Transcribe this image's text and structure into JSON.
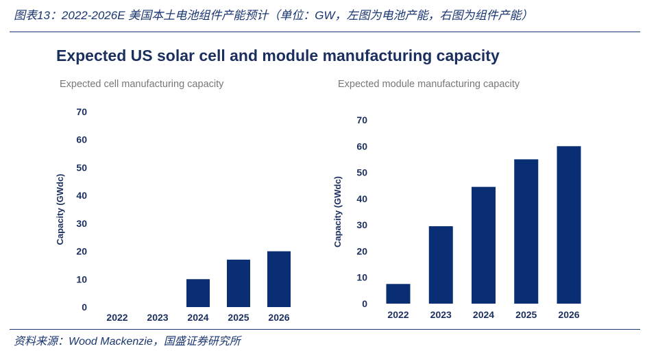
{
  "caption": "图表13：2022-2026E 美国本土电池组件产能预计（单位：GW，左图为电池产能，右图为组件产能）",
  "source": "资料来源：Wood Mackenzie，国盛证券研究所",
  "colors": {
    "bar": "#0a2e73",
    "text": "#1b2f5e",
    "caption": "#1a3570",
    "subtitle": "#777777"
  },
  "title": "Expected US solar cell and module manufacturing capacity",
  "chart_data": [
    {
      "type": "bar",
      "title": "Expected cell manufacturing capacity",
      "ylabel": "Capacity (GWdc)",
      "xlabel": "",
      "categories": [
        "2022",
        "2023",
        "2024",
        "2025",
        "2026"
      ],
      "values": [
        0,
        0,
        10,
        17,
        20
      ],
      "ylim": [
        0,
        70
      ],
      "yticks": [
        "0",
        "10",
        "20",
        "30",
        "40",
        "50",
        "60",
        "70"
      ],
      "grid": false
    },
    {
      "type": "bar",
      "title": "Expected module manufacturing capacity",
      "ylabel": "Capacity (GWdc)",
      "xlabel": "",
      "categories": [
        "2022",
        "2023",
        "2024",
        "2025",
        "2026"
      ],
      "values": [
        7.5,
        29.5,
        44.5,
        55,
        60
      ],
      "ylim": [
        0,
        70
      ],
      "yticks": [
        "0",
        "10",
        "20",
        "30",
        "40",
        "50",
        "60",
        "70"
      ],
      "grid": false
    }
  ]
}
